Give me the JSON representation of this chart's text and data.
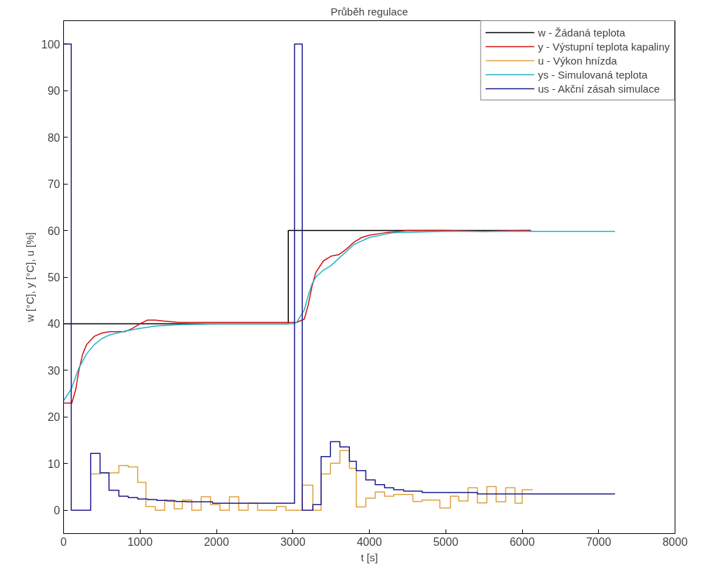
{
  "chart_data": {
    "type": "step",
    "title": "Průběh regulace",
    "xlabel": "t [s]",
    "ylabel": "w [°C], y [°C], u [%]",
    "xlim": [
      0,
      8000
    ],
    "xticks": [
      0,
      1000,
      2000,
      3000,
      4000,
      5000,
      6000,
      7000,
      8000
    ],
    "ylim": [
      -5,
      105
    ],
    "yticks": [
      0,
      10,
      20,
      30,
      40,
      50,
      60,
      70,
      80,
      90,
      100
    ],
    "grid": false,
    "legend": "top right",
    "line_style": "solid",
    "marker": "none",
    "series": [
      {
        "name": "w - Žádaná teplota",
        "color": "#000000",
        "x": [
          0,
          2940,
          6115
        ],
        "values": [
          40,
          60,
          60
        ]
      },
      {
        "name": "y - Výstupní teplota kapaliny",
        "type": "line",
        "color": "#d01010",
        "x": [
          0,
          108,
          160,
          200,
          250,
          300,
          400,
          500,
          600,
          800,
          900,
          1000,
          1100,
          1200,
          1300,
          1500,
          2000,
          2500,
          3000,
          3050,
          3150,
          3200,
          3250,
          3300,
          3400,
          3500,
          3600,
          3700,
          3800,
          3900,
          4000,
          4200,
          4500,
          5000,
          5500,
          6000,
          6100
        ],
        "values": [
          23,
          23,
          26,
          30,
          33.5,
          35.5,
          37.3,
          38,
          38.3,
          38.3,
          39,
          40,
          40.8,
          40.8,
          40.6,
          40.3,
          40.3,
          40.3,
          40.3,
          40.3,
          41,
          44,
          48,
          51,
          53.5,
          54.5,
          54.8,
          56,
          57.5,
          58.5,
          59,
          59.5,
          60,
          60,
          59.8,
          60,
          60
        ]
      },
      {
        "name": "u - Výkon hnízda",
        "color": "#e0a040",
        "x": [
          354,
          477,
          723,
          846,
          969,
          1077,
          1200,
          1323,
          1446,
          1554,
          1677,
          1800,
          1923,
          2046,
          2169,
          2292,
          2415,
          2538,
          2785,
          2908,
          3022,
          3123,
          3262,
          3369,
          3492,
          3615,
          3740,
          3830,
          3954,
          4077,
          4200,
          4320,
          4570,
          4690,
          4923,
          5061,
          5170,
          5292,
          5415,
          5538,
          5660,
          5784,
          5907,
          6000,
          6138
        ],
        "values": [
          7.8,
          8.0,
          9.6,
          9.3,
          6.0,
          0.8,
          0,
          2.2,
          0.3,
          2.2,
          0,
          2.9,
          1.2,
          0,
          2.9,
          0,
          1.5,
          0,
          0.8,
          0,
          0,
          5.4,
          0,
          7.8,
          10.1,
          12.8,
          9.0,
          0.7,
          2.6,
          3.9,
          3.0,
          3.4,
          1.9,
          2.2,
          0.5,
          3.0,
          2.0,
          4.8,
          1.6,
          5.1,
          1.8,
          4.8,
          1.5,
          4.4,
          4.4
        ]
      },
      {
        "name": "ys - Simulovaná teplota",
        "type": "line",
        "color": "#20b0c8",
        "x": [
          0,
          100,
          200,
          300,
          400,
          500,
          600,
          800,
          1000,
          1200,
          1500,
          2000,
          3000,
          3050,
          3150,
          3200,
          3250,
          3300,
          3400,
          3500,
          3600,
          3700,
          3800,
          4000,
          4300,
          5000,
          7215
        ],
        "values": [
          23.5,
          26,
          30.5,
          33.5,
          35.5,
          36.8,
          37.6,
          38.4,
          39,
          39.5,
          39.8,
          40,
          40,
          40.3,
          43,
          46,
          48.5,
          50,
          51.5,
          52.5,
          54,
          55.5,
          57,
          58.5,
          59.5,
          59.8,
          59.8
        ]
      },
      {
        "name": "us - Akční zásah simulace",
        "color": "#1a1a8c",
        "x": [
          0,
          100,
          354,
          477,
          594,
          723,
          846,
          970,
          1100,
          1220,
          1350,
          1470,
          1600,
          1950,
          3022,
          3123,
          3262,
          3369,
          3492,
          3615,
          3740,
          3830,
          3954,
          4077,
          4200,
          4320,
          4450,
          4692,
          5415,
          7215
        ],
        "values": [
          100,
          0,
          12.2,
          8,
          4.3,
          3,
          2.7,
          2.4,
          2.3,
          2.1,
          2,
          1.9,
          1.8,
          1.5,
          100,
          0,
          1.2,
          11.5,
          14.7,
          13.6,
          10.5,
          8.5,
          6.5,
          5.5,
          4.8,
          4.4,
          4.1,
          3.8,
          3.5,
          3.5
        ]
      }
    ]
  }
}
